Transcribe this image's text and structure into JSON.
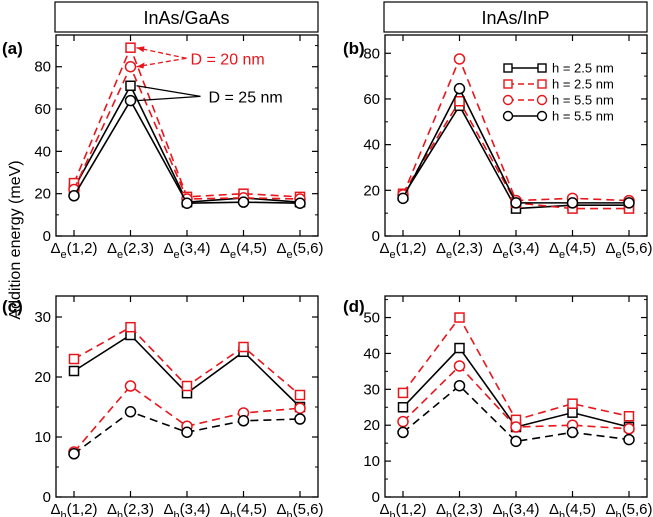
{
  "figure": {
    "ylabel": "Addition energy (meV)",
    "column_titles": [
      "InAs/GaAs",
      "InAs/InP"
    ]
  },
  "colors": {
    "black": "#000000",
    "red": "#e8151b"
  },
  "legend_entries": [
    {
      "label": "h = 2.5 nm",
      "color": "#000000",
      "marker": "square",
      "dash": "solid"
    },
    {
      "label": "h = 2.5 nm",
      "color": "#e8151b",
      "marker": "square",
      "dash": "dashed"
    },
    {
      "label": "h = 5.5 nm",
      "color": "#e8151b",
      "marker": "circle",
      "dash": "dashed"
    },
    {
      "label": "h = 5.5 nm",
      "color": "#000000",
      "marker": "circle",
      "dash": "solid"
    }
  ],
  "chart_data": [
    {
      "panel": "(a)",
      "type": "line",
      "title": "InAs/GaAs",
      "sub": "e",
      "categories": [
        "(1,2)",
        "(2,3)",
        "(3,4)",
        "(4,5)",
        "(5,6)"
      ],
      "ylim": [
        0,
        95
      ],
      "yticks": [
        0,
        20,
        40,
        60,
        80
      ],
      "annotations": [
        {
          "text": "D = 20 nm",
          "color": "#e8151b"
        },
        {
          "text": "D = 25 nm",
          "color": "#000000"
        }
      ],
      "series": [
        {
          "values": [
            22.5,
            71,
            16,
            18,
            16
          ],
          "color": "#000000",
          "marker": "square",
          "dash": "solid"
        },
        {
          "values": [
            25,
            89,
            18.5,
            20,
            18.5
          ],
          "color": "#e8151b",
          "marker": "square",
          "dash": "dashed"
        },
        {
          "values": [
            22,
            80,
            17.5,
            18,
            17.5
          ],
          "color": "#e8151b",
          "marker": "circle",
          "dash": "dashed"
        },
        {
          "values": [
            19,
            64,
            15.5,
            16,
            15.5
          ],
          "color": "#000000",
          "marker": "circle",
          "dash": "solid"
        }
      ]
    },
    {
      "panel": "(b)",
      "type": "line",
      "title": "InAs/InP",
      "sub": "e",
      "categories": [
        "(1,2)",
        "(2,3)",
        "(3,4)",
        "(4,5)",
        "(5,6)"
      ],
      "ylim": [
        0,
        88
      ],
      "yticks": [
        0,
        20,
        40,
        60,
        80
      ],
      "series": [
        {
          "values": [
            17.5,
            57,
            12,
            13.5,
            13.5
          ],
          "color": "#000000",
          "marker": "square",
          "dash": "solid"
        },
        {
          "values": [
            18.5,
            59,
            14.5,
            12,
            12
          ],
          "color": "#e8151b",
          "marker": "square",
          "dash": "dashed"
        },
        {
          "values": [
            18,
            77.5,
            15.5,
            16.5,
            15.5
          ],
          "color": "#e8151b",
          "marker": "circle",
          "dash": "dashed"
        },
        {
          "values": [
            16.5,
            64.5,
            14.5,
            14.5,
            14.5
          ],
          "color": "#000000",
          "marker": "circle",
          "dash": "solid"
        }
      ]
    },
    {
      "panel": "(c)",
      "type": "line",
      "sub": "h",
      "categories": [
        "(1,2)",
        "(2,3)",
        "(3,4)",
        "(4,5)",
        "(5,6)"
      ],
      "ylim": [
        0,
        33.5
      ],
      "yticks": [
        0,
        10,
        20,
        30
      ],
      "series": [
        {
          "values": [
            21,
            27,
            17.3,
            24.2,
            15
          ],
          "color": "#000000",
          "marker": "square",
          "dash": "solid"
        },
        {
          "values": [
            23,
            28.3,
            18.5,
            25,
            17
          ],
          "color": "#e8151b",
          "marker": "square",
          "dash": "dashed"
        },
        {
          "values": [
            7.5,
            18.5,
            11.8,
            14,
            14.8
          ],
          "color": "#e8151b",
          "marker": "circle",
          "dash": "dashed"
        },
        {
          "values": [
            7.2,
            14.2,
            10.8,
            12.7,
            13
          ],
          "color": "#000000",
          "marker": "circle",
          "dash": "dashed"
        }
      ]
    },
    {
      "panel": "(d)",
      "type": "line",
      "sub": "h",
      "categories": [
        "(1,2)",
        "(2,3)",
        "(3,4)",
        "(4,5)",
        "(5,6)"
      ],
      "ylim": [
        0,
        56
      ],
      "yticks": [
        0,
        10,
        20,
        30,
        40,
        50
      ],
      "series": [
        {
          "values": [
            25,
            41.5,
            19.5,
            23.5,
            19.5
          ],
          "color": "#000000",
          "marker": "square",
          "dash": "solid"
        },
        {
          "values": [
            29,
            50,
            21.5,
            26,
            22.5
          ],
          "color": "#e8151b",
          "marker": "square",
          "dash": "dashed"
        },
        {
          "values": [
            21,
            36.5,
            19.5,
            20,
            19
          ],
          "color": "#e8151b",
          "marker": "circle",
          "dash": "dashed"
        },
        {
          "values": [
            18,
            31,
            15.5,
            18,
            16
          ],
          "color": "#000000",
          "marker": "circle",
          "dash": "dashed"
        }
      ]
    }
  ]
}
